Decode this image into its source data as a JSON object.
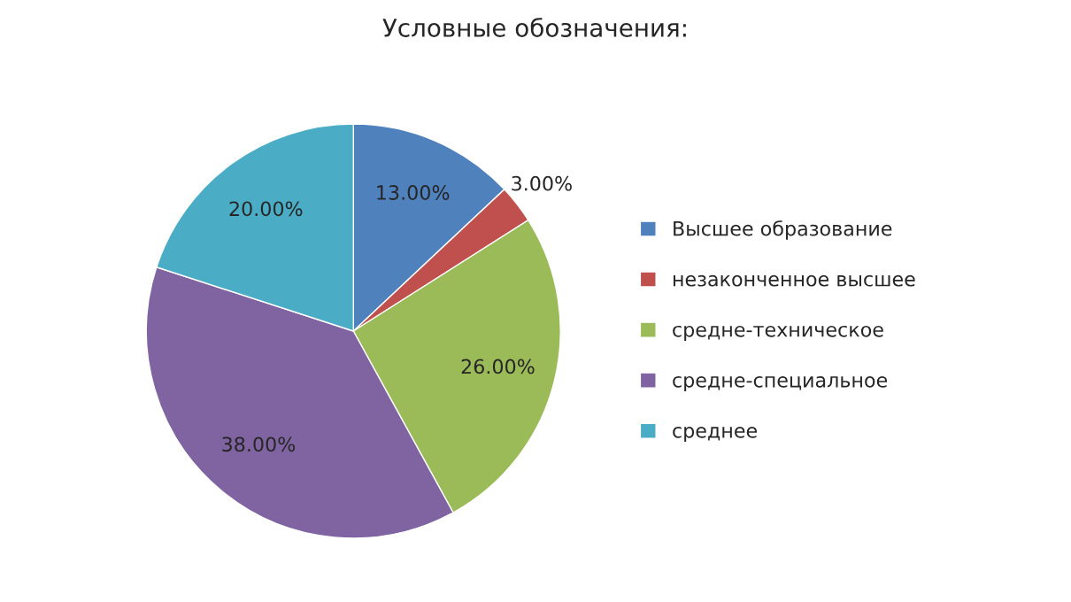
{
  "chart_data": {
    "type": "pie",
    "title": "Условные обозначения:",
    "categories": [
      "Высшее образование",
      "незаконченное высшее",
      "средне-техническое",
      "средне-специальное",
      "среднее"
    ],
    "values": [
      13,
      3,
      26,
      38,
      20
    ],
    "value_labels": [
      "13.00%",
      "3.00%",
      "26.00%",
      "38.00%",
      "20.00%"
    ],
    "colors": [
      "#4f81bd",
      "#c0504d",
      "#9bbb59",
      "#8064a2",
      "#4bacc6"
    ],
    "legend": "right"
  }
}
